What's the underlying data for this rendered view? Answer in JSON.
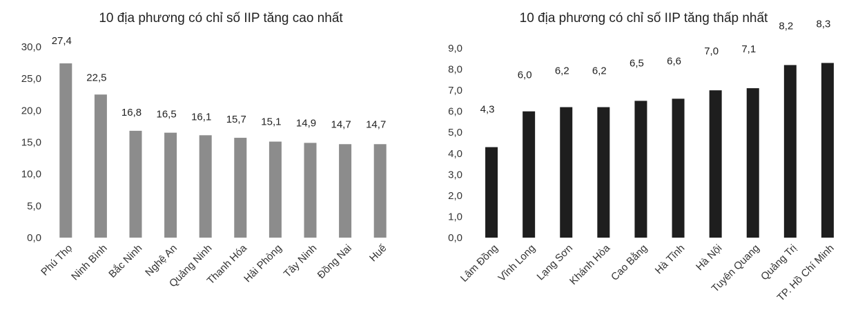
{
  "chart_data": [
    {
      "type": "bar",
      "title": "10 địa phương có chỉ số IIP tăng cao nhất",
      "categories": [
        "Phú Thọ",
        "Ninh Bình",
        "Bắc Ninh",
        "Nghệ An",
        "Quảng Ninh",
        "Thanh Hóa",
        "Hải Phòng",
        "Tây Ninh",
        "Đồng Nai",
        "Huế"
      ],
      "values": [
        27.4,
        22.5,
        16.8,
        16.5,
        16.1,
        15.7,
        15.1,
        14.9,
        14.7,
        14.7
      ],
      "value_labels": [
        "27,4",
        "22,5",
        "16,8",
        "16,5",
        "16,1",
        "15,7",
        "15,1",
        "14,9",
        "14,7",
        "14,7"
      ],
      "yticks": [
        "0,0",
        "5,0",
        "10,0",
        "15,0",
        "20,0",
        "25,0",
        "30,0"
      ],
      "ylim": [
        0,
        30
      ],
      "ytick_step": 5,
      "grid": false,
      "bar_color": "#8c8c8c",
      "xlabel": "",
      "ylabel": ""
    },
    {
      "type": "bar",
      "title": "10 địa phương có chỉ số IIP tăng thấp nhất",
      "categories": [
        "Lâm Đồng",
        "Vĩnh Long",
        "Lạng Sơn",
        "Khánh Hòa",
        "Cao Bằng",
        "Hà Tĩnh",
        "Hà Nội",
        "Tuyên Quang",
        "Quảng Trị",
        "TP. Hồ Chí Minh"
      ],
      "values": [
        4.3,
        6.0,
        6.2,
        6.2,
        6.5,
        6.6,
        7.0,
        7.1,
        8.2,
        8.3
      ],
      "value_labels": [
        "4,3",
        "6,0",
        "6,2",
        "6,2",
        "6,5",
        "6,6",
        "7,0",
        "7,1",
        "8,2",
        "8,3"
      ],
      "yticks": [
        "0,0",
        "1,0",
        "2,0",
        "3,0",
        "4,0",
        "5,0",
        "6,0",
        "7,0",
        "8,0",
        "9,0"
      ],
      "ylim": [
        0,
        9
      ],
      "ytick_step": 1,
      "grid": false,
      "bar_color": "#1e1e1e",
      "xlabel": "",
      "ylabel": ""
    }
  ]
}
